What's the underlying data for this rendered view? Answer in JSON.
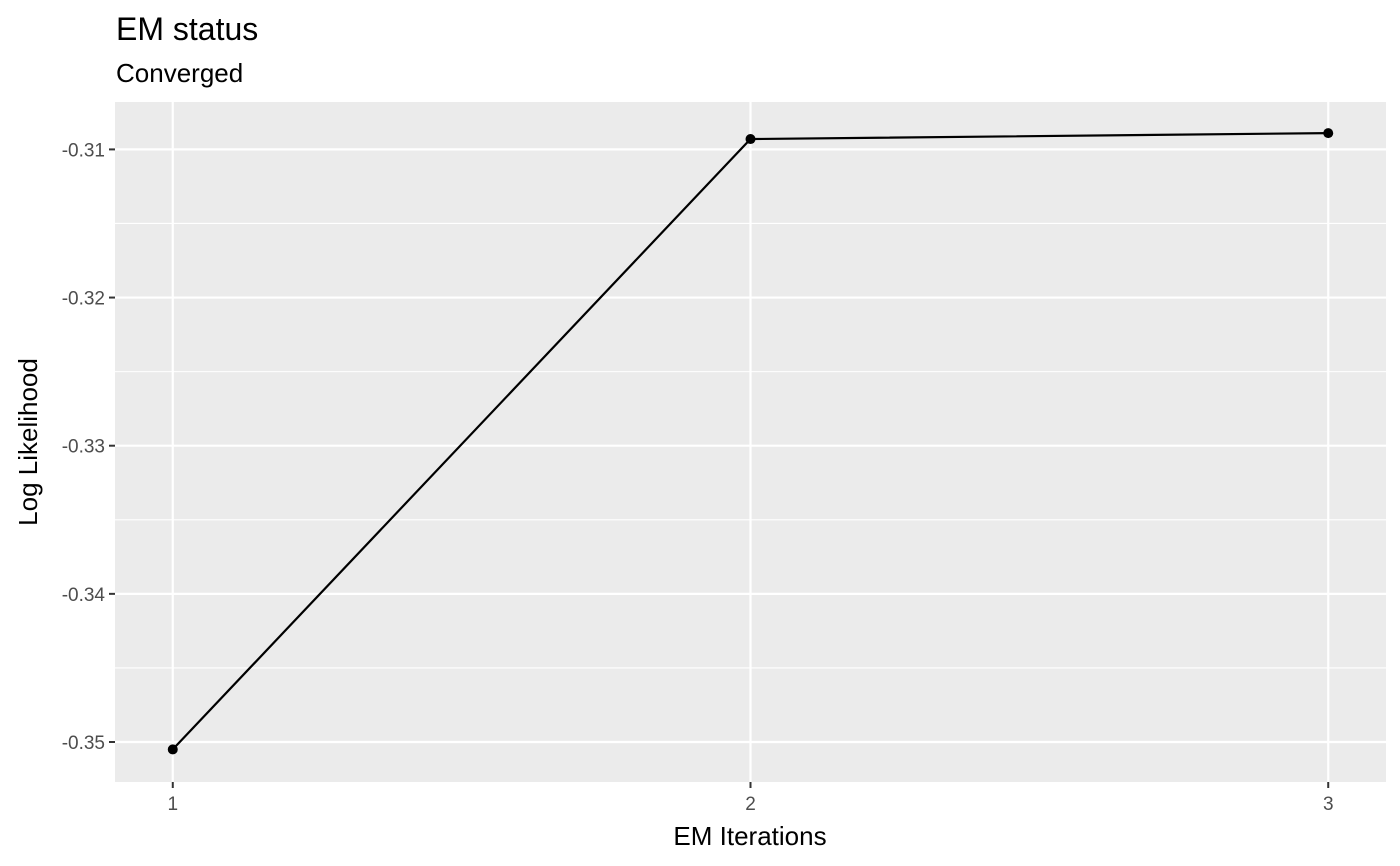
{
  "chart_data": {
    "type": "line",
    "title": "EM status",
    "subtitle": "Converged",
    "xlabel": "EM Iterations",
    "ylabel": "Log Likelihood",
    "x": [
      1,
      2,
      3
    ],
    "y": [
      -0.3505,
      -0.3093,
      -0.3089
    ],
    "xlim": [
      0.9,
      3.1
    ],
    "ylim": [
      -0.3527,
      -0.3068
    ],
    "x_ticks": [
      1,
      2,
      3
    ],
    "x_tick_labels": [
      "1",
      "2",
      "3"
    ],
    "y_ticks": [
      -0.35,
      -0.34,
      -0.33,
      -0.32,
      -0.31
    ],
    "y_tick_labels": [
      "-0.35",
      "-0.34",
      "-0.33",
      "-0.32",
      "-0.31"
    ],
    "y_minor_ticks": [
      -0.345,
      -0.335,
      -0.325,
      -0.315
    ],
    "grid": true,
    "markers": true,
    "colors": {
      "panel_background": "#ebebeb",
      "grid": "#ffffff",
      "line": "#000000",
      "point": "#000000",
      "tick_label": "#4d4d4d",
      "axis_tick": "#333333"
    }
  }
}
